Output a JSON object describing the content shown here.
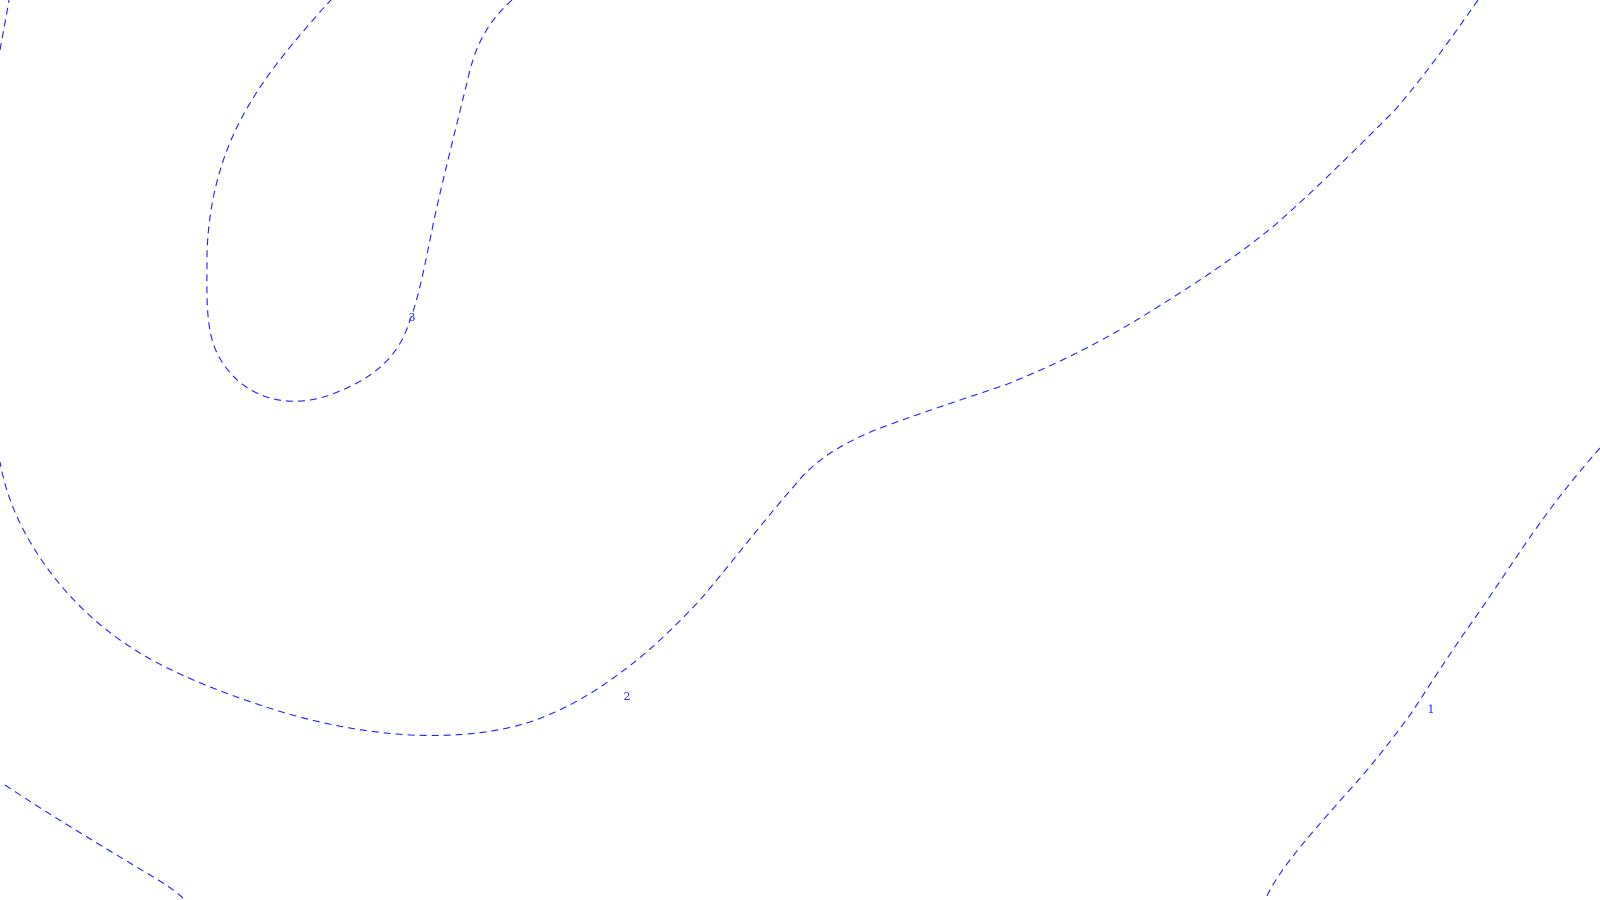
{
  "map": {
    "line_color": "#1f1fff",
    "line_style": "dashed",
    "contours": [
      {
        "id": "contour-3",
        "label": "3"
      },
      {
        "id": "contour-2",
        "label": "2"
      },
      {
        "id": "contour-1",
        "label": "1"
      },
      {
        "id": "contour-unlabeled-top-left",
        "label": ""
      },
      {
        "id": "contour-unlabeled-bottom-left",
        "label": ""
      }
    ]
  }
}
